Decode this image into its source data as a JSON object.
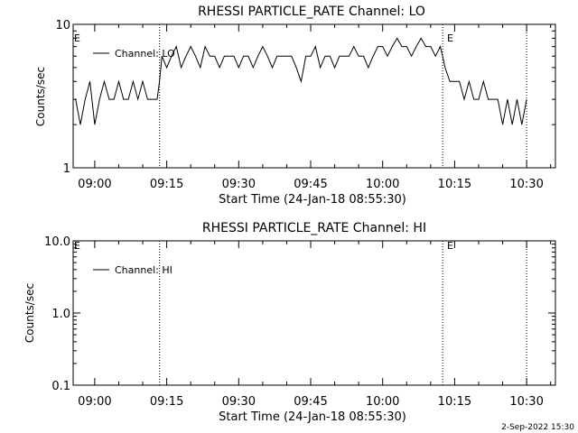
{
  "footer_timestamp": "2-Sep-2022 15:30",
  "chart_data": [
    {
      "type": "line",
      "title": "RHESSI PARTICLE_RATE Channel: LO",
      "xlabel": "Start Time (24-Jan-18 08:55:30)",
      "ylabel": "Counts/sec",
      "yscale": "log",
      "ylim": [
        1,
        10
      ],
      "ytick_values": [
        1,
        10
      ],
      "ytick_labels": [
        "1",
        "10"
      ],
      "xlim": [
        "08:55:30",
        "10:36:00"
      ],
      "xtick_values": [
        "09:00",
        "09:15",
        "09:30",
        "09:45",
        "10:00",
        "10:15",
        "10:30"
      ],
      "xtick_labels": [
        "09:00",
        "09:15",
        "09:30",
        "09:45",
        "10:00",
        "10:15",
        "10:30"
      ],
      "grid": false,
      "legend_position": "top-left",
      "series": [
        {
          "name": "Channel: LO",
          "x": [
            "08:56:00",
            "08:57:00",
            "08:58:00",
            "08:59:00",
            "09:00:00",
            "09:01:00",
            "09:02:00",
            "09:03:00",
            "09:04:00",
            "09:05:00",
            "09:06:00",
            "09:07:00",
            "09:08:00",
            "09:09:00",
            "09:10:00",
            "09:11:00",
            "09:12:00",
            "09:13:00",
            "09:13:30",
            "09:14:00",
            "09:15:00",
            "09:16:00",
            "09:17:00",
            "09:18:00",
            "09:19:00",
            "09:20:00",
            "09:21:00",
            "09:22:00",
            "09:23:00",
            "09:24:00",
            "09:25:00",
            "09:26:00",
            "09:27:00",
            "09:28:00",
            "09:29:00",
            "09:30:00",
            "09:31:00",
            "09:32:00",
            "09:33:00",
            "09:34:00",
            "09:35:00",
            "09:36:00",
            "09:37:00",
            "09:38:00",
            "09:39:00",
            "09:40:00",
            "09:41:00",
            "09:42:00",
            "09:43:00",
            "09:44:00",
            "09:45:00",
            "09:46:00",
            "09:47:00",
            "09:48:00",
            "09:49:00",
            "09:50:00",
            "09:51:00",
            "09:52:00",
            "09:53:00",
            "09:54:00",
            "09:55:00",
            "09:56:00",
            "09:57:00",
            "09:58:00",
            "09:59:00",
            "10:00:00",
            "10:01:00",
            "10:02:00",
            "10:03:00",
            "10:04:00",
            "10:05:00",
            "10:06:00",
            "10:07:00",
            "10:08:00",
            "10:09:00",
            "10:10:00",
            "10:11:00",
            "10:12:00",
            "10:12:30",
            "10:13:00",
            "10:14:00",
            "10:15:00",
            "10:16:00",
            "10:17:00",
            "10:18:00",
            "10:19:00",
            "10:20:00",
            "10:21:00",
            "10:22:00",
            "10:23:00",
            "10:24:00",
            "10:25:00",
            "10:26:00",
            "10:27:00",
            "10:28:00",
            "10:29:00",
            "10:30:00"
          ],
          "values": [
            3,
            2,
            3,
            4,
            2,
            3,
            4,
            3,
            3,
            4,
            3,
            3,
            4,
            3,
            4,
            3,
            3,
            3,
            4,
            6,
            5,
            6,
            7,
            5,
            6,
            7,
            6,
            5,
            7,
            6,
            6,
            5,
            6,
            6,
            6,
            5,
            6,
            6,
            5,
            6,
            7,
            6,
            5,
            6,
            6,
            6,
            6,
            5,
            4,
            6,
            6,
            7,
            5,
            6,
            6,
            5,
            6,
            6,
            6,
            7,
            6,
            6,
            5,
            6,
            7,
            7,
            6,
            7,
            8,
            7,
            7,
            6,
            7,
            8,
            7,
            7,
            6,
            7,
            6,
            5,
            4,
            4,
            4,
            3,
            4,
            3,
            3,
            4,
            3,
            3,
            3,
            2,
            3,
            2,
            3,
            2,
            3
          ]
        }
      ],
      "annotations": [
        {
          "text": "E",
          "x": "08:55:30",
          "position": "top"
        },
        {
          "text": "E",
          "x": "10:12:30",
          "position": "top"
        }
      ],
      "vertical_markers": [
        "09:13:30",
        "10:12:30",
        "10:30:00"
      ]
    },
    {
      "type": "line",
      "title": "RHESSI PARTICLE_RATE Channel: HI",
      "xlabel": "Start Time (24-Jan-18 08:55:30)",
      "ylabel": "Counts/sec",
      "yscale": "log",
      "ylim": [
        0.1,
        10
      ],
      "ytick_values": [
        0.1,
        1,
        10
      ],
      "ytick_labels": [
        "0.1",
        "1.0",
        "10.0"
      ],
      "xlim": [
        "08:55:30",
        "10:36:00"
      ],
      "xtick_values": [
        "09:00",
        "09:15",
        "09:30",
        "09:45",
        "10:00",
        "10:15",
        "10:30"
      ],
      "xtick_labels": [
        "09:00",
        "09:15",
        "09:30",
        "09:45",
        "10:00",
        "10:15",
        "10:30"
      ],
      "grid": false,
      "legend_position": "top-left",
      "series": [
        {
          "name": "Channel: HI",
          "x": [],
          "values": []
        }
      ],
      "annotations": [
        {
          "text": "E",
          "x": "08:55:30",
          "position": "top"
        },
        {
          "text": "E",
          "x": "10:12:30",
          "position": "top"
        }
      ],
      "vertical_markers": [
        "09:13:30",
        "10:12:30",
        "10:30:00"
      ]
    }
  ]
}
